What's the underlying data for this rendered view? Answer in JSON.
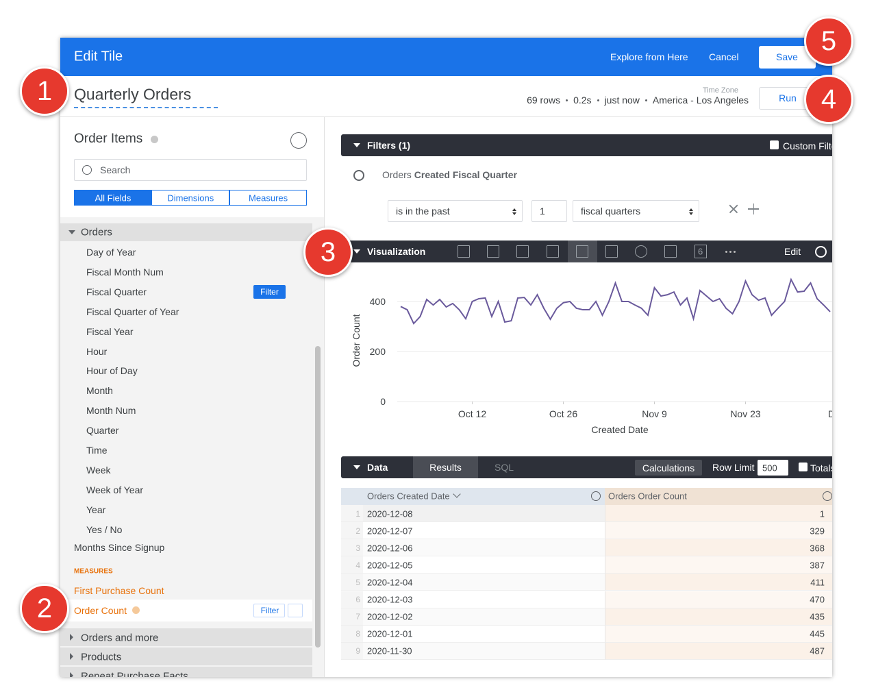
{
  "header": {
    "title": "Edit Tile",
    "explore": "Explore from Here",
    "cancel": "Cancel",
    "save": "Save"
  },
  "query": {
    "title": "Quarterly Orders",
    "time_zone_label": "Time Zone",
    "stats": [
      "69 rows",
      "0.2s",
      "just now",
      "America - Los Angeles"
    ],
    "run": "Run"
  },
  "badges": [
    "1",
    "2",
    "3",
    "4",
    "5"
  ],
  "sidebar": {
    "explore": "Order Items",
    "search": "Search",
    "tabs": [
      "All Fields",
      "Dimensions",
      "Measures"
    ],
    "group": "Orders",
    "fields": [
      "Day of Year",
      "Fiscal Month Num",
      "Fiscal Quarter",
      "Fiscal Quarter of Year",
      "Fiscal Year",
      "Hour",
      "Hour of Day",
      "Month",
      "Month Num",
      "Quarter",
      "Time",
      "Week",
      "Week of Year",
      "Year",
      "Yes / No"
    ],
    "filter_button": "Filter",
    "extra_dimension": "Months Since Signup",
    "measures_label": "MEASURES",
    "measures": [
      "First Purchase Count",
      "Order Count"
    ],
    "measure_filter_button": "Filter",
    "groups": [
      "Orders and more",
      "Products",
      "Repeat Purchase Facts"
    ]
  },
  "filters": {
    "title": "Filters (1)",
    "custom": "Custom Filter",
    "field_view": "Orders",
    "field_name": "Created Fiscal Quarter",
    "operator": "is in the past",
    "amount": "1",
    "unit": "fiscal quarters"
  },
  "visualization": {
    "title": "Visualization",
    "single_value_icon": "6",
    "edit": "Edit"
  },
  "chart_data": {
    "type": "line",
    "y_label": "Order Count",
    "x_label": "Created Date",
    "color": "#6a5a9c",
    "x": [
      1,
      2,
      3,
      4,
      5,
      6,
      7,
      8,
      9,
      10,
      11,
      12,
      13,
      14,
      15,
      16,
      17,
      18,
      19,
      20,
      21,
      22,
      23,
      24,
      25,
      26,
      27,
      28,
      29,
      30,
      31,
      32,
      33,
      34,
      35,
      36,
      37,
      38,
      39,
      40,
      41,
      42,
      43,
      44,
      45,
      46,
      47,
      48,
      49,
      50,
      51,
      52,
      53,
      54,
      55,
      56,
      57,
      58,
      59,
      60,
      61,
      62,
      63,
      64,
      65,
      66,
      67
    ],
    "values": [
      380,
      367,
      312,
      340,
      408,
      386,
      408,
      378,
      392,
      367,
      331,
      400,
      411,
      414,
      340,
      400,
      318,
      323,
      414,
      416,
      386,
      427,
      373,
      329,
      373,
      395,
      400,
      373,
      367,
      367,
      400,
      345,
      400,
      474,
      400,
      400,
      386,
      373,
      345,
      455,
      422,
      427,
      438,
      386,
      414,
      331,
      444,
      422,
      400,
      411,
      373,
      351,
      400,
      482,
      427,
      405,
      414,
      345,
      373,
      400,
      488,
      438,
      441,
      474,
      411,
      386,
      359
    ],
    "xticks": [
      {
        "value": 12,
        "label": "Oct 12"
      },
      {
        "value": 26,
        "label": "Oct 26"
      },
      {
        "value": 40,
        "label": "Nov 9"
      },
      {
        "value": 54,
        "label": "Nov 23"
      },
      {
        "value": 68,
        "label": "Dec"
      }
    ],
    "xlim": [
      1,
      67
    ],
    "ylim": [
      0,
      500
    ],
    "yticks": [
      0,
      200,
      400
    ],
    "grid": true
  },
  "data": {
    "tab": "Data",
    "results": "Results",
    "sql": "SQL",
    "calculations": "Calculations",
    "row_limit": "Row Limit",
    "row_limit_value": "500",
    "totals": "Totals",
    "columns": [
      "Orders Created Date",
      "Orders Order Count"
    ],
    "rows": [
      [
        1,
        "2020-12-08",
        1
      ],
      [
        2,
        "2020-12-07",
        329
      ],
      [
        3,
        "2020-12-06",
        368
      ],
      [
        4,
        "2020-12-05",
        387
      ],
      [
        5,
        "2020-12-04",
        411
      ],
      [
        6,
        "2020-12-03",
        470
      ],
      [
        7,
        "2020-12-02",
        435
      ],
      [
        8,
        "2020-12-01",
        445
      ],
      [
        9,
        "2020-11-30",
        487
      ]
    ]
  }
}
